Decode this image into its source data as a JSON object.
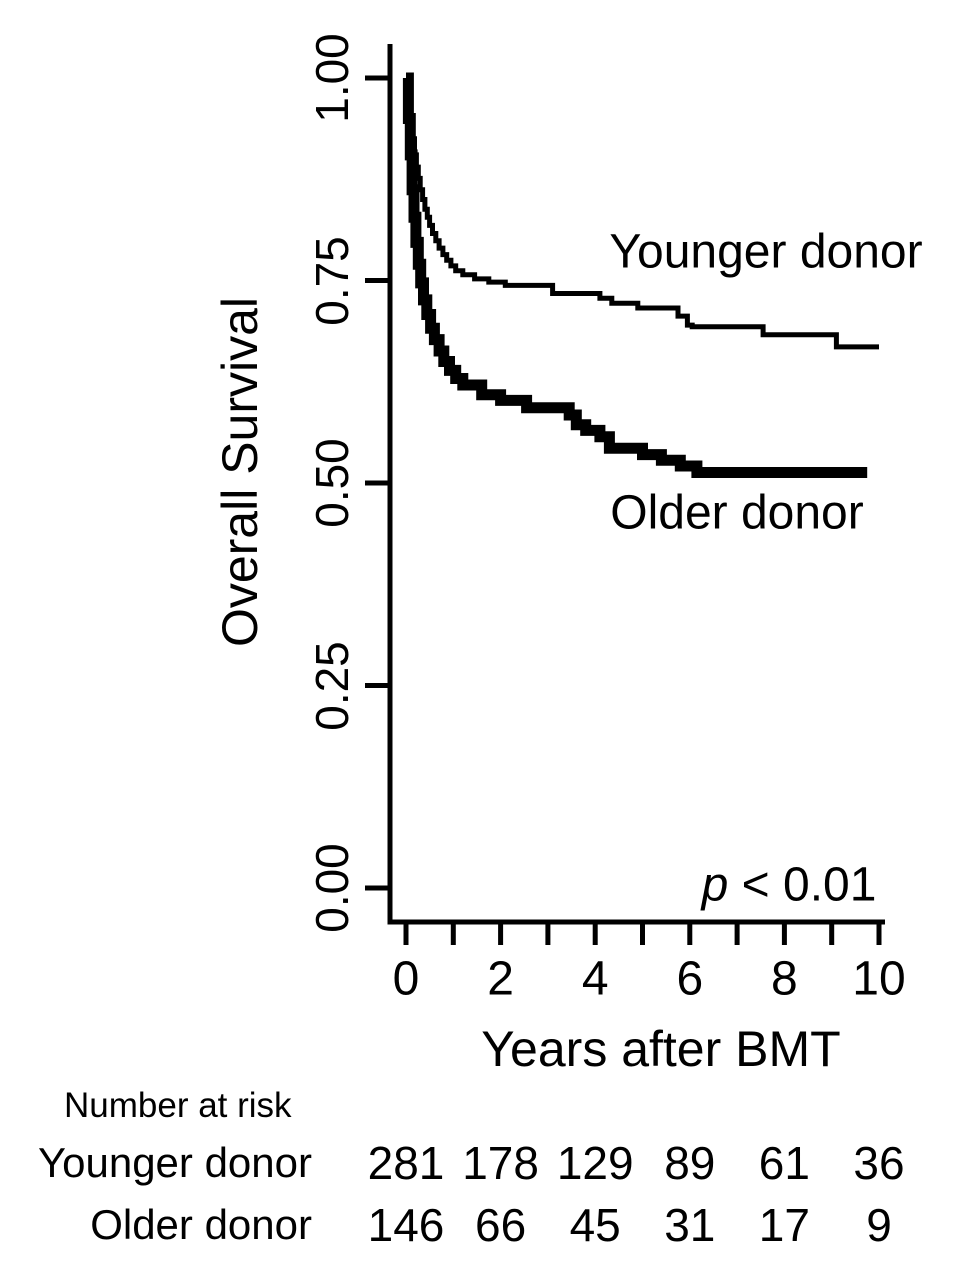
{
  "chart_data": {
    "type": "line",
    "subtype": "kaplan-meier-step",
    "title": "",
    "xlabel": "Years after BMT",
    "ylabel": "Overall Survival",
    "xlim": [
      0,
      10
    ],
    "ylim": [
      0.0,
      1.0
    ],
    "grid": false,
    "line_color": "#000000",
    "x_tick_marks": [
      0,
      1,
      2,
      3,
      4,
      5,
      6,
      7,
      8,
      9,
      10
    ],
    "x_ticks": [
      {
        "label": "0",
        "value": 0
      },
      {
        "label": "2",
        "value": 2
      },
      {
        "label": "4",
        "value": 4
      },
      {
        "label": "6",
        "value": 6
      },
      {
        "label": "8",
        "value": 8
      },
      {
        "label": "10",
        "value": 10
      }
    ],
    "y_ticks": [
      {
        "label": "1.00",
        "value": 1.0
      },
      {
        "label": "0.75",
        "value": 0.75
      },
      {
        "label": "0.50",
        "value": 0.5
      },
      {
        "label": "0.25",
        "value": 0.25
      },
      {
        "label": "0.00",
        "value": 0.0
      }
    ],
    "series": [
      {
        "name": "Younger donor",
        "line_width": 5,
        "end_x": 10.0,
        "points": [
          [
            0.0,
            1.0
          ],
          [
            0.06,
            0.965
          ],
          [
            0.1,
            0.945
          ],
          [
            0.14,
            0.925
          ],
          [
            0.18,
            0.905
          ],
          [
            0.22,
            0.89
          ],
          [
            0.26,
            0.876
          ],
          [
            0.3,
            0.862
          ],
          [
            0.35,
            0.85
          ],
          [
            0.4,
            0.838
          ],
          [
            0.45,
            0.828
          ],
          [
            0.5,
            0.818
          ],
          [
            0.56,
            0.808
          ],
          [
            0.63,
            0.799
          ],
          [
            0.7,
            0.79
          ],
          [
            0.78,
            0.782
          ],
          [
            0.86,
            0.775
          ],
          [
            0.95,
            0.768
          ],
          [
            1.05,
            0.762
          ],
          [
            1.2,
            0.757
          ],
          [
            1.45,
            0.752
          ],
          [
            1.75,
            0.748
          ],
          [
            2.1,
            0.744
          ],
          [
            3.1,
            0.734
          ],
          [
            4.1,
            0.728
          ],
          [
            4.35,
            0.722
          ],
          [
            4.9,
            0.716
          ],
          [
            5.75,
            0.706
          ],
          [
            5.95,
            0.695
          ],
          [
            6.05,
            0.693
          ],
          [
            7.55,
            0.683
          ],
          [
            9.1,
            0.668
          ]
        ]
      },
      {
        "name": "Older donor",
        "line_width": 11,
        "end_x": 9.75,
        "points": [
          [
            0.0,
            1.0
          ],
          [
            0.05,
            0.95
          ],
          [
            0.09,
            0.905
          ],
          [
            0.13,
            0.862
          ],
          [
            0.17,
            0.828
          ],
          [
            0.21,
            0.797
          ],
          [
            0.26,
            0.77
          ],
          [
            0.31,
            0.747
          ],
          [
            0.37,
            0.726
          ],
          [
            0.44,
            0.708
          ],
          [
            0.52,
            0.691
          ],
          [
            0.6,
            0.677
          ],
          [
            0.7,
            0.663
          ],
          [
            0.8,
            0.65
          ],
          [
            0.92,
            0.639
          ],
          [
            1.05,
            0.629
          ],
          [
            1.2,
            0.621
          ],
          [
            1.6,
            0.609
          ],
          [
            2.0,
            0.602
          ],
          [
            2.55,
            0.593
          ],
          [
            3.45,
            0.584
          ],
          [
            3.6,
            0.572
          ],
          [
            3.8,
            0.565
          ],
          [
            4.1,
            0.557
          ],
          [
            4.3,
            0.543
          ],
          [
            5.0,
            0.535
          ],
          [
            5.4,
            0.528
          ],
          [
            5.8,
            0.521
          ],
          [
            6.15,
            0.513
          ]
        ]
      }
    ],
    "annotations": [
      {
        "text": "Younger donor"
      },
      {
        "text": "Older donor"
      }
    ],
    "stat_label": {
      "symbol": "p",
      "text": " < 0.01"
    }
  },
  "at_risk": {
    "header": "Number at risk",
    "time_points": [
      0,
      2,
      4,
      6,
      8,
      10
    ],
    "rows": [
      {
        "label": "Younger donor",
        "values": [
          "281",
          "178",
          "129",
          "89",
          "61",
          "36"
        ]
      },
      {
        "label": "Older donor",
        "values": [
          "146",
          "66",
          "45",
          "31",
          "17",
          "9"
        ]
      }
    ]
  }
}
